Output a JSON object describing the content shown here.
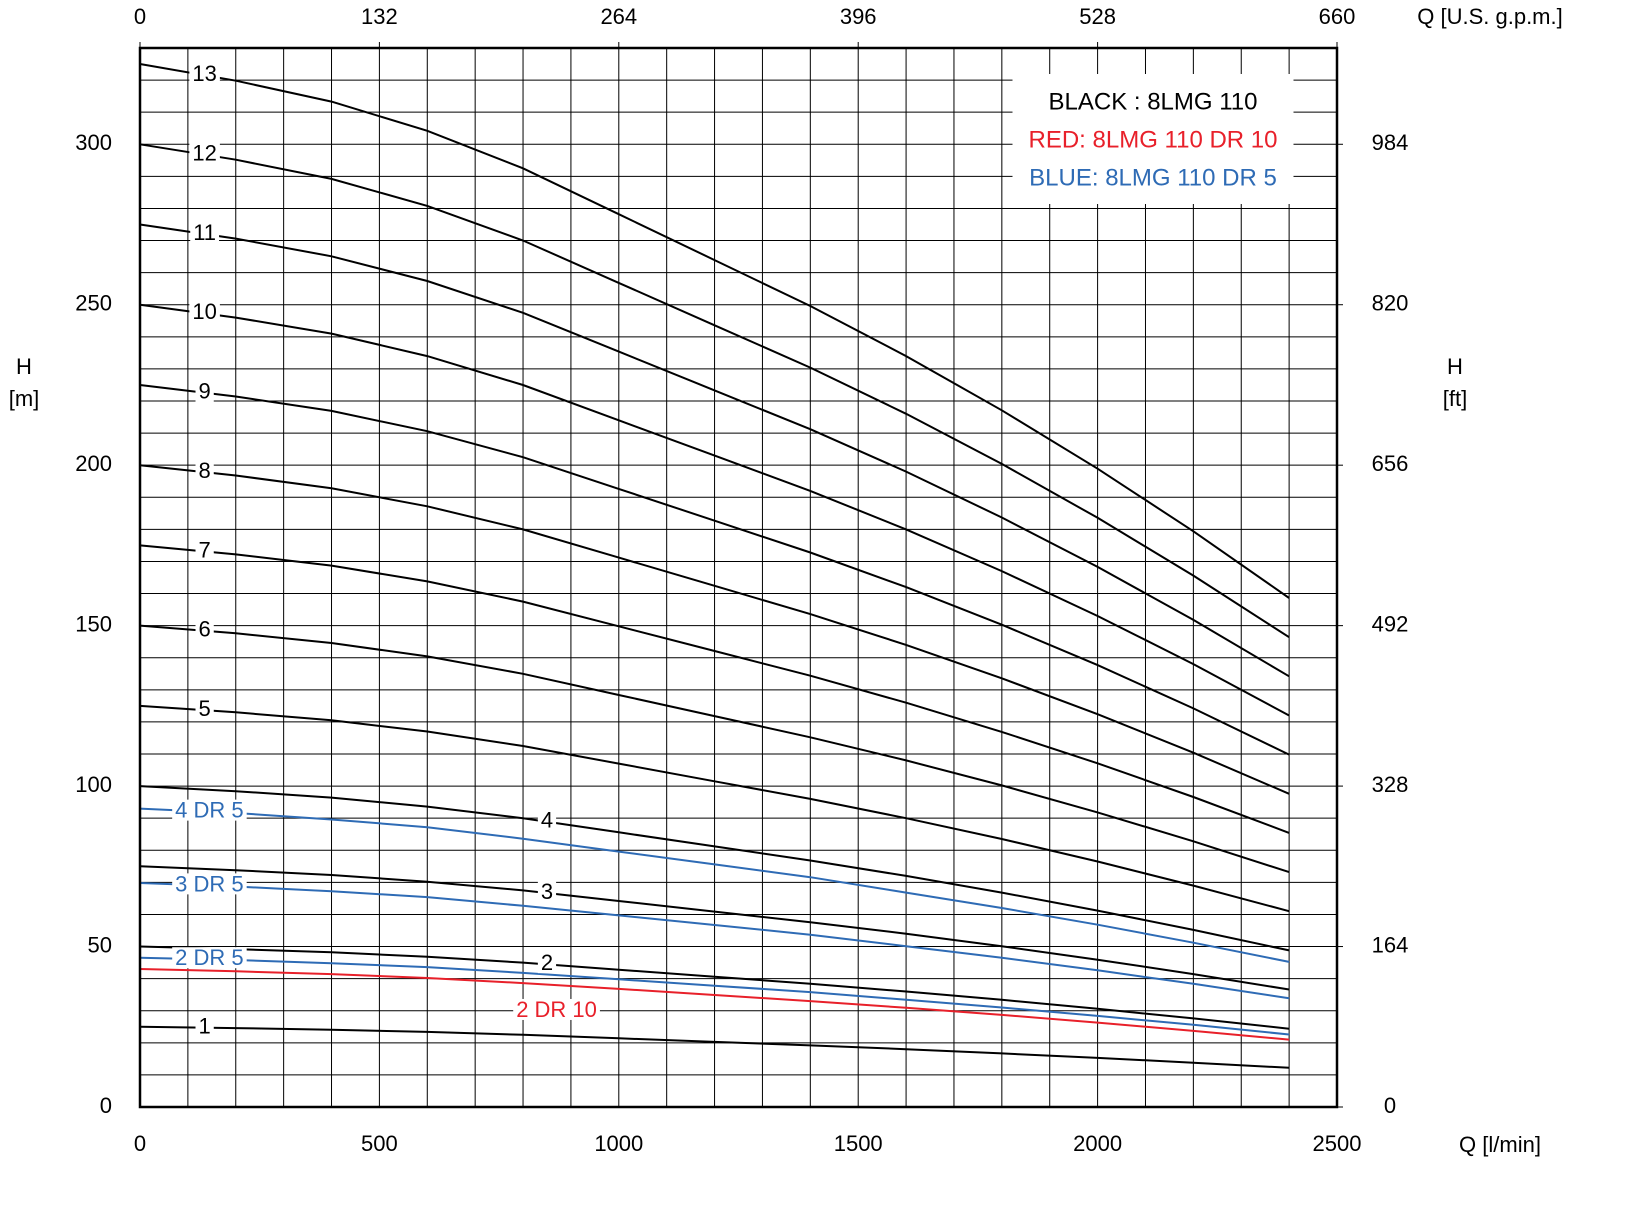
{
  "chart_data": {
    "type": "line",
    "xlabel": "Q [l/min]",
    "x2label": "Q [U.S. g.p.m.]",
    "ylabel": [
      "H",
      "[m]"
    ],
    "y2label": [
      "H",
      "[ft]"
    ],
    "xlim": [
      0,
      2500
    ],
    "xticks": [
      0,
      500,
      1000,
      1500,
      2000,
      2500
    ],
    "x2lim": [
      0,
      660
    ],
    "x2ticks": [
      0,
      132,
      264,
      396,
      528,
      660
    ],
    "ylim": [
      0,
      330
    ],
    "yticks": [
      0,
      50,
      100,
      150,
      200,
      250,
      300
    ],
    "y2lim": [
      0,
      1082.4
    ],
    "y2ticks": [
      0,
      164,
      328,
      492,
      656,
      820,
      984
    ],
    "grid": true,
    "legend_position": "upper right",
    "legend": [
      {
        "text": "BLACK : 8LMG 110",
        "color": "#000000"
      },
      {
        "text": "RED: 8LMG 110 DR 10",
        "color": "#e8202a"
      },
      {
        "text": "BLUE: 8LMG 110 DR 5",
        "color": "#2e6bb5"
      }
    ],
    "x": [
      0,
      200,
      400,
      600,
      800,
      1000,
      1200,
      1400,
      1600,
      1800,
      2000,
      2200,
      2400
    ],
    "series": [
      {
        "name": "1",
        "color": "#000000",
        "values": [
          25,
          24.6,
          24.1,
          23.4,
          22.5,
          21.4,
          20.3,
          19.2,
          18.0,
          16.7,
          15.3,
          13.8,
          12.2
        ]
      },
      {
        "name": "2",
        "color": "#000000",
        "values": [
          50,
          49.2,
          48.2,
          46.8,
          45,
          42.8,
          40.6,
          38.4,
          36,
          33.4,
          30.6,
          27.6,
          24.4
        ]
      },
      {
        "name": "3",
        "color": "#000000",
        "values": [
          75,
          73.8,
          72.3,
          70.2,
          67.5,
          64.2,
          60.9,
          57.6,
          54,
          50.1,
          45.9,
          41.4,
          36.6
        ]
      },
      {
        "name": "4",
        "color": "#000000",
        "values": [
          100,
          98.4,
          96.4,
          93.6,
          90,
          85.6,
          81.2,
          76.8,
          72,
          66.8,
          61.2,
          55.2,
          48.8
        ]
      },
      {
        "name": "5",
        "color": "#000000",
        "values": [
          125,
          123,
          120.5,
          117,
          112.5,
          107,
          101.5,
          96,
          90,
          83.5,
          76.5,
          69,
          61
        ]
      },
      {
        "name": "6",
        "color": "#000000",
        "values": [
          150,
          147.6,
          144.6,
          140.4,
          135,
          128.4,
          121.8,
          115.2,
          108,
          100.2,
          91.8,
          82.8,
          73.2
        ]
      },
      {
        "name": "7",
        "color": "#000000",
        "values": [
          175,
          172.2,
          168.7,
          163.8,
          157.5,
          149.8,
          142.1,
          134.4,
          126,
          116.9,
          107.1,
          96.6,
          85.4
        ]
      },
      {
        "name": "8",
        "color": "#000000",
        "values": [
          200,
          196.8,
          192.8,
          187.2,
          180,
          171.2,
          162.4,
          153.6,
          144,
          133.6,
          122.4,
          110.4,
          97.6
        ]
      },
      {
        "name": "9",
        "color": "#000000",
        "values": [
          225,
          221.4,
          216.9,
          210.6,
          202.5,
          192.6,
          182.7,
          172.8,
          162,
          150.3,
          137.7,
          124.2,
          109.8
        ]
      },
      {
        "name": "10",
        "color": "#000000",
        "values": [
          250,
          246,
          241,
          234,
          225,
          214,
          203,
          192,
          180,
          167,
          153,
          138,
          122
        ]
      },
      {
        "name": "11",
        "color": "#000000",
        "values": [
          275,
          270.6,
          265.1,
          257.4,
          247.5,
          235.4,
          223.3,
          211.2,
          198,
          183.7,
          168.3,
          151.8,
          134.2
        ]
      },
      {
        "name": "12",
        "color": "#000000",
        "values": [
          300,
          295.2,
          289.2,
          280.8,
          270,
          256.8,
          243.6,
          230.4,
          216,
          200.4,
          183.6,
          165.6,
          146.4
        ]
      },
      {
        "name": "13",
        "color": "#000000",
        "values": [
          325,
          319.8,
          313.3,
          304.2,
          292.5,
          278.2,
          263.9,
          249.6,
          234,
          217.1,
          198.9,
          179.4,
          158.6
        ]
      },
      {
        "name": "4 DR 5",
        "color": "#2e6bb5",
        "values": [
          93,
          91.6,
          89.6,
          87.2,
          83.6,
          79.6,
          75.6,
          71.6,
          66.8,
          62,
          56.8,
          51.2,
          45.2
        ]
      },
      {
        "name": "3 DR 5",
        "color": "#2e6bb5",
        "values": [
          69.8,
          68.7,
          67.2,
          65.4,
          62.7,
          59.7,
          56.7,
          53.7,
          50.1,
          46.5,
          42.6,
          38.4,
          33.9
        ]
      },
      {
        "name": "2 DR 5",
        "color": "#2e6bb5",
        "values": [
          46.5,
          45.8,
          44.8,
          43.6,
          41.8,
          39.8,
          37.8,
          35.8,
          33.4,
          31,
          28.4,
          25.6,
          22.6
        ]
      },
      {
        "name": "2 DR 10",
        "color": "#e8202a",
        "values": [
          43,
          42.3,
          41.4,
          40.2,
          38.6,
          36.8,
          34.9,
          33,
          30.9,
          28.7,
          26.3,
          23.7,
          21
        ]
      }
    ]
  }
}
